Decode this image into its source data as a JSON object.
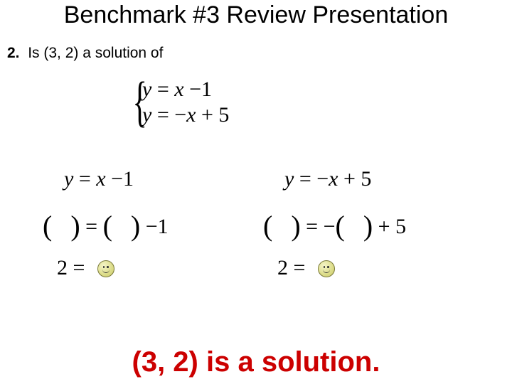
{
  "title": "Benchmark #3 Review Presentation",
  "question": {
    "number": "2.",
    "text": "Is (3, 2) a solution of"
  },
  "system": {
    "eq1": {
      "lhs": "y",
      "eq": "=",
      "rhs_a": "x",
      "op": "−",
      "rhs_b": "1"
    },
    "eq2": {
      "lhs": "y",
      "eq": "=",
      "neg": "−",
      "rhs_a": "x",
      "op": "+",
      "rhs_b": "5"
    }
  },
  "work": {
    "left": {
      "line1": {
        "lhs": "y",
        "eq": "=",
        "rhs_a": "x",
        "op": "−",
        "rhs_b": "1"
      },
      "line2": {
        "eq": "=",
        "op": "−",
        "rhs_b": "1"
      },
      "line3": {
        "lhs": "2",
        "eq": "="
      }
    },
    "right": {
      "line1": {
        "lhs": "y",
        "eq": "=",
        "neg": "−",
        "rhs_a": "x",
        "op": "+",
        "rhs_b": "5"
      },
      "line2": {
        "eq": "=",
        "neg": "−",
        "op": "+",
        "rhs_b": "5"
      },
      "line3": {
        "lhs": "2",
        "eq": "="
      }
    }
  },
  "answer": "(3, 2) is a solution.",
  "colors": {
    "text": "#000000",
    "answer": "#cc0000",
    "background": "#ffffff"
  }
}
